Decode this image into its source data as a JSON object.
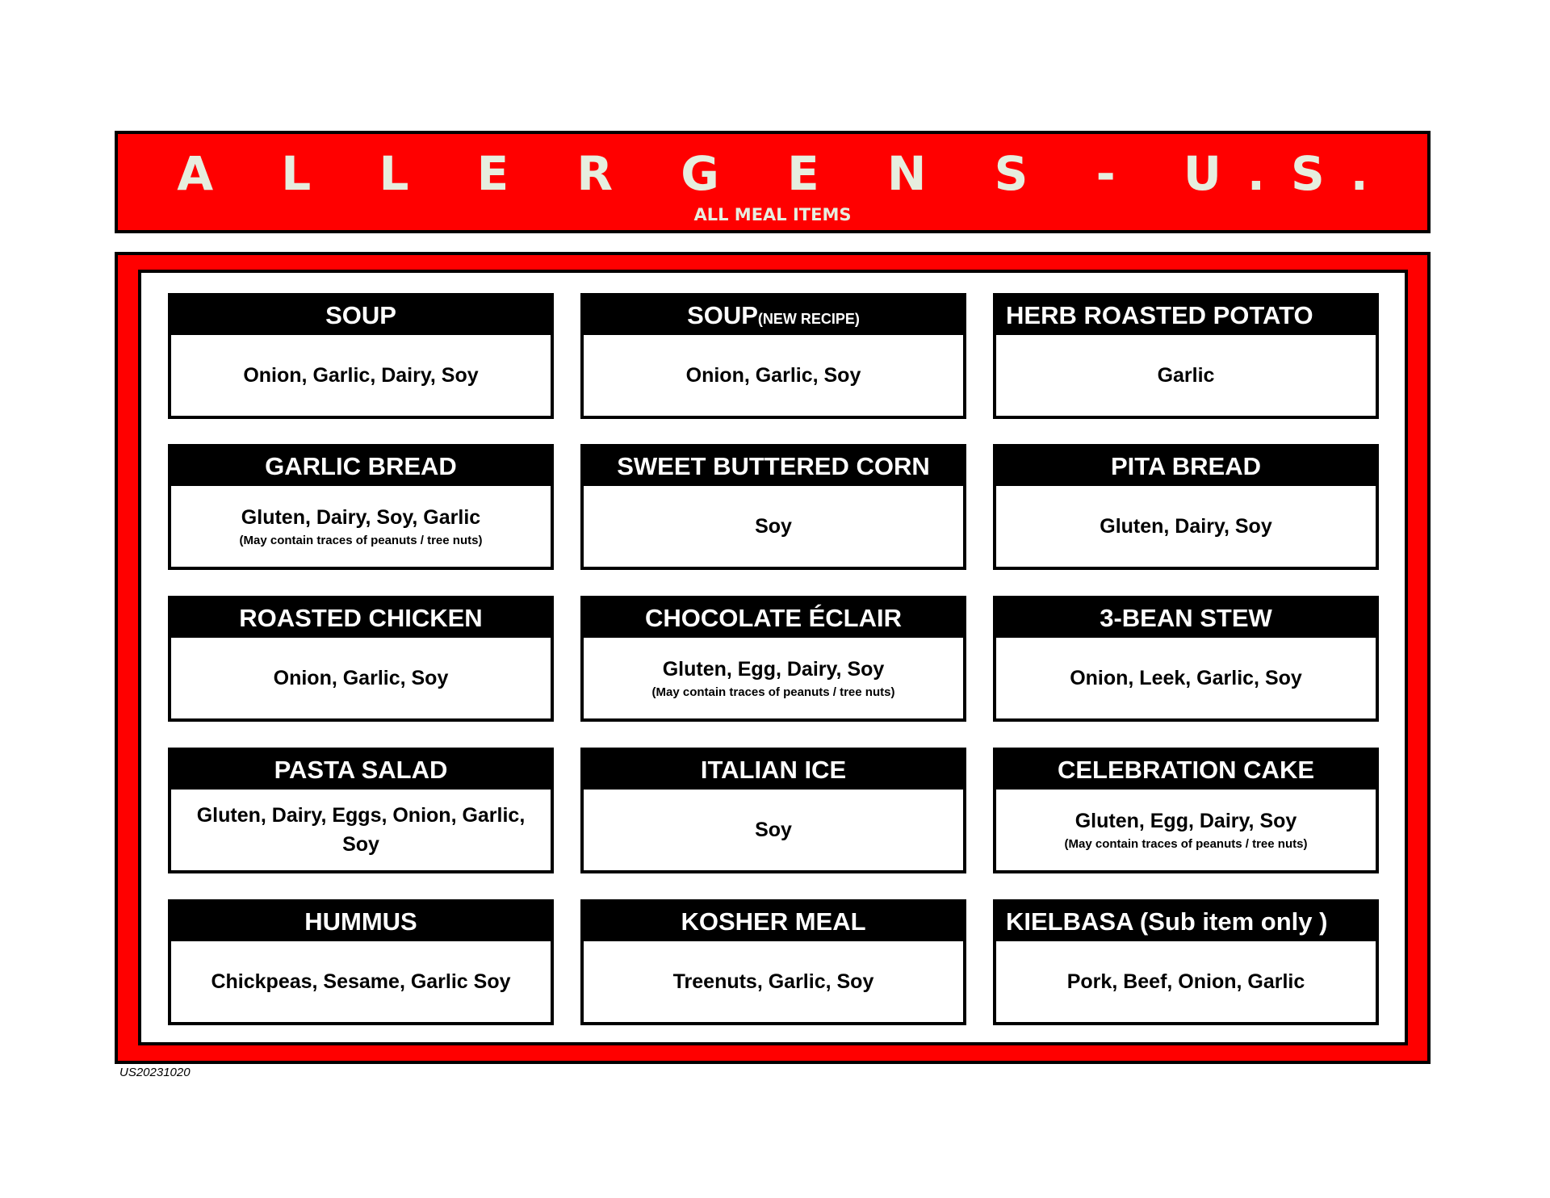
{
  "header": {
    "title": "ALLERGENS- U.S.",
    "title_display": "A L L E R G E N S - U.S.",
    "subtitle": "ALL MEAL ITEMS"
  },
  "colors": {
    "banner_red": "#ff0000",
    "title_text": "#e6eedf",
    "border": "#000000"
  },
  "items": [
    {
      "name": "SOUP",
      "allergens": "Onion, Garlic, Dairy, Soy"
    },
    {
      "name": "SOUP",
      "name_suffix": "(NEW RECIPE)",
      "allergens": "Onion, Garlic, Soy"
    },
    {
      "name": "HERB ROASTED POTATO",
      "allergens": "Garlic"
    },
    {
      "name": "GARLIC BREAD",
      "allergens": "Gluten, Dairy, Soy, Garlic",
      "note": "(May contain traces of peanuts / tree nuts)"
    },
    {
      "name": "SWEET BUTTERED CORN",
      "allergens": "Soy"
    },
    {
      "name": "PITA BREAD",
      "allergens": "Gluten, Dairy, Soy"
    },
    {
      "name": "ROASTED CHICKEN",
      "allergens": "Onion, Garlic, Soy"
    },
    {
      "name": "CHOCOLATE ÉCLAIR",
      "allergens": "Gluten, Egg, Dairy, Soy",
      "note": "(May contain traces of peanuts / tree nuts)"
    },
    {
      "name": "3-BEAN STEW",
      "allergens": "Onion, Leek, Garlic, Soy"
    },
    {
      "name": "PASTA SALAD",
      "allergens": "Gluten, Dairy, Eggs, Onion, Garlic, Soy"
    },
    {
      "name": "ITALIAN ICE",
      "allergens": "Soy"
    },
    {
      "name": "CELEBRATION CAKE",
      "allergens": "Gluten, Egg, Dairy, Soy",
      "note": "(May contain traces of peanuts / tree nuts)"
    },
    {
      "name": "HUMMUS",
      "allergens": "Chickpeas, Sesame, Garlic Soy"
    },
    {
      "name": "KOSHER MEAL",
      "allergens": "Treenuts, Garlic, Soy"
    },
    {
      "name": "KIELBASA (Sub item only )",
      "allergens": "Pork, Beef, Onion, Garlic"
    }
  ],
  "footer": {
    "code": "US20231020"
  }
}
